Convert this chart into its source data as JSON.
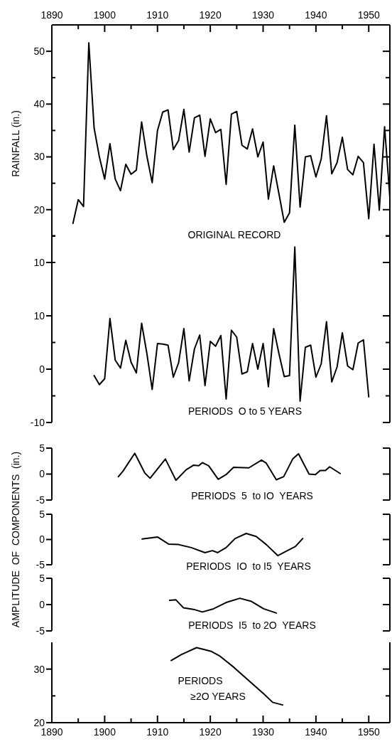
{
  "chart_data": [
    {
      "type": "line",
      "title": "ORIGINAL RECORD",
      "ylabel": "RAINFALL (in.)",
      "xlim": [
        1890,
        1954
      ],
      "ylim": [
        10,
        55
      ],
      "tick_labels": "y",
      "yticks": [
        10,
        {
          "value": 15,
          "label": null
        },
        20,
        {
          "value": 25,
          "label": null
        },
        30,
        {
          "value": 35,
          "label": null
        },
        40,
        {
          "value": 45,
          "label": null
        },
        50
      ],
      "x2lim": [
        1890,
        1954
      ],
      "x2ticks": [
        1890,
        {
          "value": 1895,
          "label": null
        },
        1900,
        {
          "value": 1905,
          "label": null
        },
        1910,
        {
          "value": 1915,
          "label": null
        },
        1920,
        {
          "value": 1925,
          "label": null
        },
        1930,
        {
          "value": 1935,
          "label": null
        },
        1940,
        {
          "value": 1945,
          "label": null
        },
        1950
      ],
      "x": [
        1894,
        1895,
        1896,
        1897,
        1898,
        1899,
        1900,
        1901,
        1902,
        1903,
        1904,
        1905,
        1906,
        1907,
        1908,
        1909,
        1910,
        1911,
        1912,
        1913,
        1914,
        1915,
        1916,
        1917,
        1918,
        1919,
        1920,
        1921,
        1922,
        1923,
        1924,
        1925,
        1926,
        1927,
        1928,
        1929,
        1930,
        1931,
        1932,
        1933,
        1934,
        1935,
        1936,
        1937,
        1938,
        1939,
        1940,
        1941,
        1942,
        1943,
        1944,
        1945,
        1946,
        1947,
        1948,
        1949,
        1950,
        1951,
        1952,
        1953,
        1954
      ],
      "series": [
        {
          "color": "#000000",
          "values": [
            17.4,
            21.9,
            20.6,
            51.6,
            35.5,
            30,
            25.8,
            32.5,
            25.8,
            23.6,
            28.6,
            26.7,
            27.5,
            36.6,
            30.1,
            25.1,
            35,
            38.5,
            38.9,
            31.4,
            33.1,
            39,
            30.9,
            37.4,
            37.9,
            30.1,
            37.2,
            34.6,
            35.2,
            24.8,
            38.1,
            38.6,
            32.2,
            31.5,
            35.3,
            30,
            32.8,
            22,
            28.3,
            23,
            17.6,
            19.4,
            36,
            20.5,
            30,
            30.2,
            26.2,
            29.6,
            37.8,
            26.8,
            28.9,
            33.7,
            27.6,
            26.6,
            30.1,
            28.9,
            18.3,
            32.4,
            19.9,
            35.7,
            22.3
          ]
        }
      ]
    },
    {
      "type": "line",
      "title": "PERIODS  O to 5 YEARS",
      "xlim": [
        1890,
        1954
      ],
      "ylim": [
        -10,
        25
      ],
      "tick_labels": "y",
      "yticks": [
        {
          "value": -10,
          "label": "-10"
        },
        {
          "value": -5,
          "label": null
        },
        0,
        {
          "value": 5,
          "label": null
        },
        10,
        {
          "value": 20,
          "label": null
        },
        {
          "value": 25,
          "label": null
        }
      ],
      "x": [
        1898,
        1899,
        1900,
        1901,
        1902,
        1903,
        1904,
        1905,
        1906,
        1907,
        1908,
        1909,
        1910,
        1911,
        1912,
        1913,
        1914,
        1915,
        1916,
        1917,
        1918,
        1919,
        1920,
        1921,
        1922,
        1923,
        1924,
        1925,
        1926,
        1927,
        1928,
        1929,
        1930,
        1931,
        1932,
        1933,
        1934,
        1935,
        1936,
        1937,
        1938,
        1939,
        1940,
        1941,
        1942,
        1943,
        1944,
        1945,
        1946,
        1947,
        1948,
        1949,
        1950
      ],
      "series": [
        {
          "color": "#000000",
          "values": [
            -1.2,
            -2.9,
            -1.8,
            9.5,
            1.7,
            0.2,
            5.4,
            1.3,
            -0.7,
            8.6,
            2.9,
            -3.8,
            4.8,
            4.7,
            4.5,
            -1.5,
            1.2,
            7.6,
            -2.2,
            3.8,
            6.4,
            -3.1,
            5.2,
            4.3,
            6.3,
            -5.6,
            7.3,
            6,
            -0.9,
            -0.5,
            4.8,
            0,
            4.8,
            -3.3,
            7.6,
            2.9,
            -1.4,
            -1.2,
            22.9,
            -6,
            4.1,
            4.5,
            -1.5,
            1,
            8.9,
            -2.4,
            0.4,
            6.8,
            0.6,
            -0.1,
            4.9,
            5.5,
            -5.2
          ]
        }
      ]
    },
    {
      "type": "line",
      "title": "PERIODS  5  to IO  YEARS",
      "xlim": [
        1890,
        1954
      ],
      "ylim": [
        -5,
        5
      ],
      "tick_labels": "y",
      "yticks": [
        -5,
        0,
        5
      ],
      "x": [
        1902.6,
        1903.5,
        1905.7,
        1907.6,
        1908.6,
        1911.5,
        1913.5,
        1915.4,
        1916.8,
        1917.8,
        1918.5,
        1919.7,
        1921.5,
        1923,
        1924.4,
        1927.3,
        1929.7,
        1930.6,
        1932.5,
        1933.9,
        1935.6,
        1936.7,
        1938.7,
        1939.9,
        1940.8,
        1941.8,
        1942.6,
        1944.6
      ],
      "series": [
        {
          "color": "#000000",
          "values": [
            -0.5,
            0.6,
            4,
            0.2,
            -0.8,
            2.9,
            -1.2,
            0.8,
            1.7,
            1.6,
            2.2,
            1.6,
            -1,
            -0.1,
            1.3,
            1.2,
            2.7,
            2.1,
            -1.1,
            -0.5,
            2.9,
            3.9,
            0,
            -0.1,
            0.7,
            0.7,
            1.4,
            0.1
          ]
        }
      ]
    },
    {
      "type": "line",
      "title": "PERIODS  IO  to I5  YEARS",
      "ylabel": "AMPLITUDE  OF  COMPONENTS  (in.)",
      "xlim": [
        1890,
        1954
      ],
      "ylim": [
        -5,
        5
      ],
      "tick_labels": "y",
      "yticks": [
        -5,
        0,
        5
      ],
      "x": [
        1907.1,
        1910,
        1912.1,
        1914,
        1916.4,
        1919,
        1920.4,
        1921.4,
        1923,
        1924.7,
        1926.8,
        1928.7,
        1930.6,
        1932.8,
        1934.4,
        1936.1,
        1937.5
      ],
      "series": [
        {
          "color": "#000000",
          "values": [
            0.1,
            0.5,
            -0.9,
            -1,
            -1.6,
            -2.6,
            -2.2,
            -2.6,
            -1.6,
            0.2,
            1.2,
            0.6,
            -1,
            -3.2,
            -2.3,
            -1.4,
            0.2
          ]
        }
      ]
    },
    {
      "type": "line",
      "title": "PERIODS  I5  to 2O  YEARS",
      "xlim": [
        1890,
        1954
      ],
      "ylim": [
        -5,
        5
      ],
      "tick_labels": "y",
      "yticks": [
        -5,
        0,
        5
      ],
      "x": [
        1912.3,
        1913.5,
        1914.9,
        1916.8,
        1918.5,
        1920.6,
        1923,
        1925.6,
        1927.8,
        1930.1,
        1932.5
      ],
      "series": [
        {
          "color": "#000000",
          "values": [
            0.8,
            0.9,
            -0.6,
            -0.9,
            -1.4,
            -0.8,
            0.4,
            1.2,
            0.6,
            -0.8,
            -1.6
          ]
        }
      ]
    },
    {
      "type": "line",
      "title": "PERIODS ≥2O YEARS",
      "xlim": [
        1890,
        1954
      ],
      "ylim": [
        20,
        35
      ],
      "yticks": [
        20,
        {
          "value": 25,
          "label": null
        },
        30
      ],
      "xticks": [
        1890,
        {
          "value": 1895,
          "label": null
        },
        1900,
        {
          "value": 1905,
          "label": null
        },
        1910,
        {
          "value": 1915,
          "label": null
        },
        1920,
        {
          "value": 1925,
          "label": null
        },
        1930,
        {
          "value": 1935,
          "label": null
        },
        1940,
        {
          "value": 1945,
          "label": null
        },
        1950
      ],
      "x": [
        1912.6,
        1914.5,
        1917.4,
        1920.2,
        1921.7,
        1924.5,
        1927.8,
        1930.2,
        1931.8,
        1933.7
      ],
      "series": [
        {
          "color": "#000000",
          "values": [
            31.6,
            32.7,
            34,
            33.3,
            32.5,
            30.3,
            27.4,
            25.3,
            23.8,
            23.3
          ]
        }
      ]
    }
  ]
}
